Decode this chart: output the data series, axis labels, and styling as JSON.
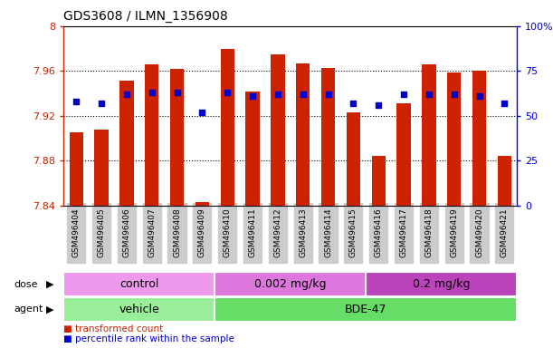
{
  "title": "GDS3608 / ILMN_1356908",
  "samples": [
    "GSM496404",
    "GSM496405",
    "GSM496406",
    "GSM496407",
    "GSM496408",
    "GSM496409",
    "GSM496410",
    "GSM496411",
    "GSM496412",
    "GSM496413",
    "GSM496414",
    "GSM496415",
    "GSM496416",
    "GSM496417",
    "GSM496418",
    "GSM496419",
    "GSM496420",
    "GSM496421"
  ],
  "bar_values": [
    7.905,
    7.908,
    7.951,
    7.966,
    7.962,
    7.843,
    7.98,
    7.942,
    7.975,
    7.967,
    7.963,
    7.923,
    7.884,
    7.931,
    7.966,
    7.959,
    7.96,
    7.884
  ],
  "percentile_values": [
    58,
    57,
    62,
    63,
    63,
    52,
    63,
    61,
    62,
    62,
    62,
    57,
    56,
    62,
    62,
    62,
    61,
    57
  ],
  "ymin": 7.84,
  "ymax": 8.0,
  "yticks": [
    7.84,
    7.88,
    7.92,
    7.96,
    8.0
  ],
  "ytick_labels": [
    "7.84",
    "7.88",
    "7.92",
    "7.96",
    "8"
  ],
  "right_yticks": [
    0,
    25,
    50,
    75,
    100
  ],
  "right_ytick_labels": [
    "0",
    "25",
    "50",
    "75",
    "100%"
  ],
  "bar_color": "#cc2200",
  "dot_color": "#0000cc",
  "bar_width": 0.55,
  "grid_lines": [
    7.88,
    7.92,
    7.96
  ],
  "agent_groups": [
    {
      "label": "vehicle",
      "start": 0,
      "end": 6,
      "color": "#99ee99"
    },
    {
      "label": "BDE-47",
      "start": 6,
      "end": 18,
      "color": "#66dd66"
    }
  ],
  "dose_groups": [
    {
      "label": "control",
      "start": 0,
      "end": 6,
      "color": "#ee99ee"
    },
    {
      "label": "0.002 mg/kg",
      "start": 6,
      "end": 12,
      "color": "#dd66dd"
    },
    {
      "label": "0.2 mg/kg",
      "start": 12,
      "end": 18,
      "color": "#cc44cc"
    }
  ],
  "bg_color": "#ffffff",
  "tick_label_bg": "#cccccc",
  "legend_items": [
    {
      "color": "#cc2200",
      "label": "transformed count"
    },
    {
      "color": "#0000cc",
      "label": "percentile rank within the sample"
    }
  ]
}
